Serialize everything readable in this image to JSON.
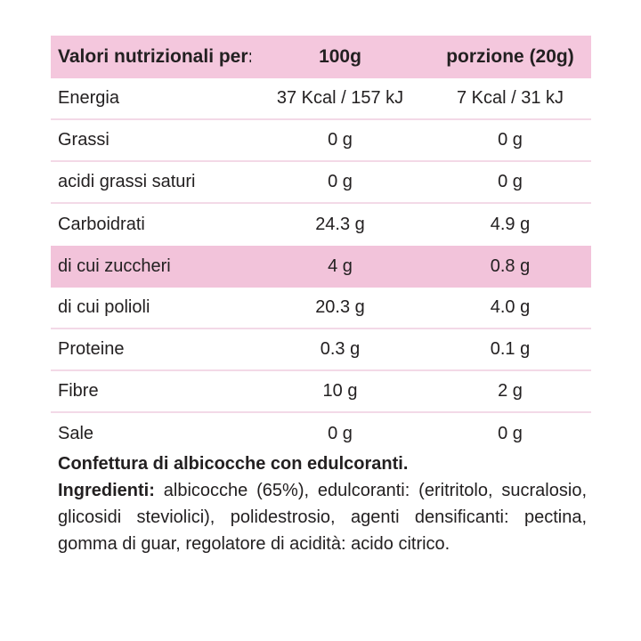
{
  "table": {
    "header": {
      "col1": "Valori nutrizionali per:",
      "col2": "100g",
      "col3": "porzione (20g)"
    },
    "rows": [
      {
        "label": "Energia",
        "per100g": "37 Kcal / 157 kJ",
        "portion": "7 Kcal / 31 kJ"
      },
      {
        "label": "Grassi",
        "per100g": "0 g",
        "portion": "0 g"
      },
      {
        "label": "acidi grassi saturi",
        "per100g": "0 g",
        "portion": "0 g"
      },
      {
        "label": "Carboidrati",
        "per100g": "24.3 g",
        "portion": "4.9 g"
      },
      {
        "label": "di cui zuccheri",
        "per100g": "4 g",
        "portion": "0.8 g"
      },
      {
        "label": "di cui polioli",
        "per100g": "20.3 g",
        "portion": "4.0 g"
      },
      {
        "label": "Proteine",
        "per100g": "0.3 g",
        "portion": "0.1 g"
      },
      {
        "label": "Fibre",
        "per100g": "10 g",
        "portion": "2 g"
      },
      {
        "label": "Sale",
        "per100g": "0 g",
        "portion": "0 g"
      }
    ]
  },
  "description": {
    "title": "Confettura di albicocche con edulcoranti.",
    "ingredients_label": "Ingredienti:",
    "ingredients_text": "albicocche (65%), edulcoranti: (eritritolo, sucralosio, glicosidi steviolici), polidestrosio, agenti densificanti: pectina, gomma di guar, regolatore di acidità: acido citrico."
  },
  "colors": {
    "header_bg": "#f4c7dd",
    "highlight_bg": "#f2c3da",
    "divider": "#f3d9e7",
    "text": "#232021",
    "background": "#ffffff"
  }
}
